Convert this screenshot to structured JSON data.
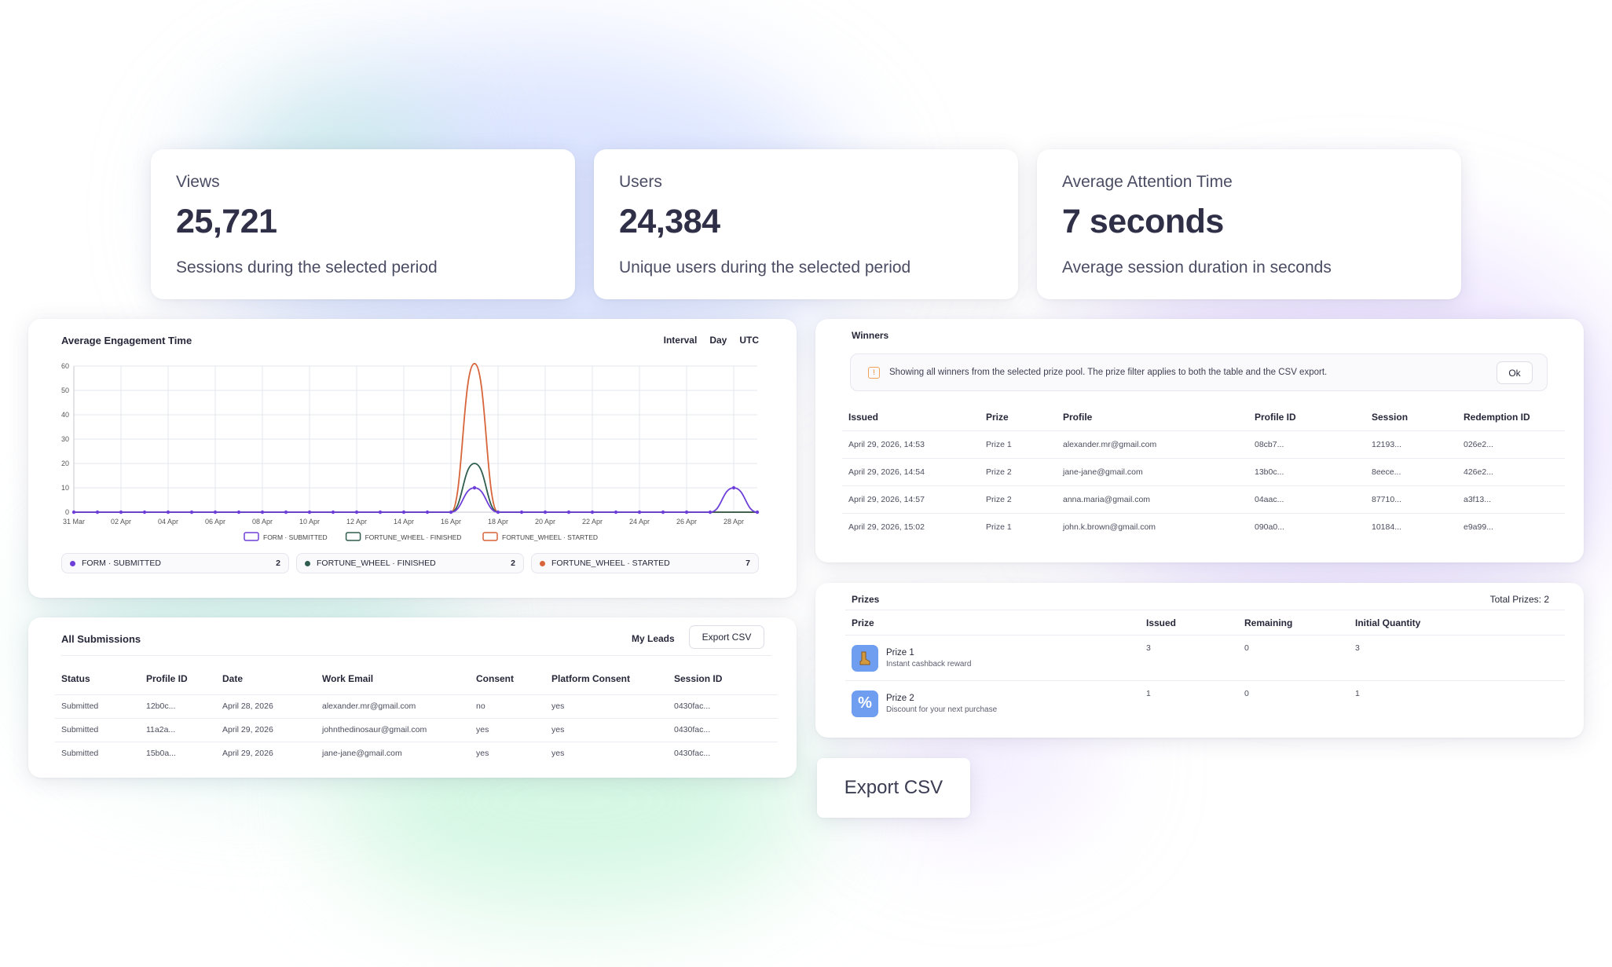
{
  "stats": [
    {
      "label": "Views",
      "value": "25,721",
      "description": "Sessions during the selected period"
    },
    {
      "label": "Users",
      "value": "24,384",
      "description": "Unique users during the selected period"
    },
    {
      "label": "Average Attention Time",
      "value": "7 seconds",
      "description": "Average session duration in seconds"
    }
  ],
  "engagement": {
    "title": "Average Engagement Time",
    "controls": {
      "interval": "Interval",
      "day": "Day",
      "tz": "UTC"
    },
    "legend_pills": [
      {
        "label": "FORM · SUBMITTED",
        "count": "2",
        "color": "#6d3fd8"
      },
      {
        "label": "FORTUNE_WHEEL · FINISHED",
        "count": "2",
        "color": "#2f5d4e"
      },
      {
        "label": "FORTUNE_WHEEL · STARTED",
        "count": "7",
        "color": "#d7643a"
      }
    ]
  },
  "chart_data": {
    "type": "line",
    "title": "Average Engagement Time",
    "x": [
      "31 Mar",
      "01 Apr",
      "02 Apr",
      "03 Apr",
      "04 Apr",
      "05 Apr",
      "06 Apr",
      "07 Apr",
      "08 Apr",
      "09 Apr",
      "10 Apr",
      "11 Apr",
      "12 Apr",
      "13 Apr",
      "14 Apr",
      "15 Apr",
      "16 Apr",
      "17 Apr",
      "18 Apr",
      "19 Apr",
      "20 Apr",
      "21 Apr",
      "22 Apr",
      "23 Apr",
      "24 Apr",
      "25 Apr",
      "26 Apr",
      "27 Apr",
      "28 Apr",
      "29 Apr"
    ],
    "x_tick_labels": [
      "31 Mar",
      "02 Apr",
      "04 Apr",
      "06 Apr",
      "08 Apr",
      "10 Apr",
      "12 Apr",
      "14 Apr",
      "16 Apr",
      "18 Apr",
      "20 Apr",
      "22 Apr",
      "24 Apr",
      "26 Apr",
      "28 Apr"
    ],
    "y_ticks": [
      0,
      10,
      20,
      30,
      40,
      50,
      60
    ],
    "ylim": [
      0,
      60
    ],
    "grid": true,
    "legend_position": "bottom",
    "series": [
      {
        "name": "FORM · SUBMITTED",
        "color": "#6d3fd8",
        "values": [
          0,
          0,
          0,
          0,
          0,
          0,
          0,
          0,
          0,
          0,
          0,
          0,
          0,
          0,
          0,
          0,
          0,
          10,
          0,
          0,
          0,
          0,
          0,
          0,
          0,
          0,
          0,
          0,
          10,
          0
        ]
      },
      {
        "name": "FORTUNE_WHEEL · FINISHED",
        "color": "#2f5d4e",
        "values": [
          0,
          0,
          0,
          0,
          0,
          0,
          0,
          0,
          0,
          0,
          0,
          0,
          0,
          0,
          0,
          0,
          0,
          20,
          0,
          0,
          0,
          0,
          0,
          0,
          0,
          0,
          0,
          0,
          0,
          0
        ]
      },
      {
        "name": "FORTUNE_WHEEL · STARTED",
        "color": "#d7643a",
        "values": [
          0,
          0,
          0,
          0,
          0,
          0,
          0,
          0,
          0,
          0,
          0,
          0,
          0,
          0,
          0,
          0,
          0,
          61,
          0,
          0,
          0,
          0,
          0,
          0,
          0,
          0,
          0,
          0,
          0,
          0
        ]
      }
    ]
  },
  "submissions": {
    "title": "All Submissions",
    "my_leads": "My Leads",
    "export": "Export CSV",
    "headers": [
      "Status",
      "Profile ID",
      "Date",
      "Work Email",
      "Consent",
      "Platform Consent",
      "Session ID"
    ],
    "rows": [
      [
        "Submitted",
        "12b0c...",
        "April 28, 2026",
        "alexander.mr@gmail.com",
        "no",
        "yes",
        "0430fac..."
      ],
      [
        "Submitted",
        "11a2a...",
        "April 29, 2026",
        "johnthedinosaur@gmail.com",
        "yes",
        "yes",
        "0430fac..."
      ],
      [
        "Submitted",
        "15b0a...",
        "April 29, 2026",
        "jane-jane@gmail.com",
        "yes",
        "yes",
        "0430fac..."
      ]
    ]
  },
  "winners": {
    "title": "Winners",
    "notice": "Showing all winners from the selected prize pool. The prize filter applies to both the table and the CSV export.",
    "ok": "Ok",
    "headers": [
      "Issued",
      "Prize",
      "Profile",
      "Profile ID",
      "Session",
      "Redemption ID"
    ],
    "rows": [
      [
        "April 29, 2026, 14:53",
        "Prize 1",
        "alexander.mr@gmail.com",
        "08cb7...",
        "12193...",
        "026e2..."
      ],
      [
        "April 29, 2026, 14:54",
        "Prize 2",
        "jane-jane@gmail.com",
        "13b0c...",
        "8eece...",
        "426e2..."
      ],
      [
        "April 29, 2026, 14:57",
        "Prize 2",
        "anna.maria@gmail.com",
        "04aac...",
        "87710...",
        "a3f13..."
      ],
      [
        "April 29, 2026, 15:02",
        "Prize 1",
        "john.k.brown@gmail.com",
        "090a0...",
        "10184...",
        "e9a99..."
      ]
    ]
  },
  "prizes": {
    "title": "Prizes",
    "total": "Total Prizes: 2",
    "headers": [
      "Prize",
      "Issued",
      "Remaining",
      "Initial Quantity"
    ],
    "items": [
      {
        "name": "Prize 1",
        "desc": "Instant cashback reward",
        "issued": "3",
        "remaining": "0",
        "initial": "3",
        "icon": "boot-icon"
      },
      {
        "name": "Prize 2",
        "desc": "Discount for your next purchase",
        "issued": "1",
        "remaining": "0",
        "initial": "1",
        "icon": "percent-icon"
      }
    ]
  },
  "export_csv": "Export CSV"
}
